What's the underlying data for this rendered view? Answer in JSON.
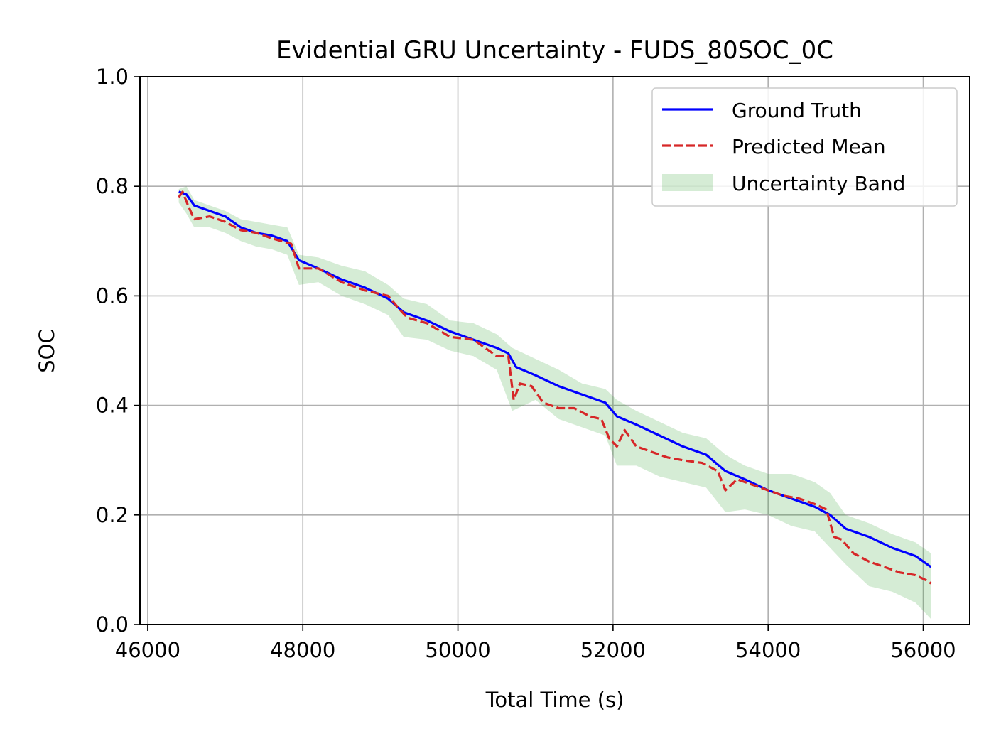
{
  "chart_data": {
    "type": "line",
    "title": "Evidential GRU Uncertainty - FUDS_80SOC_0C",
    "xlabel": "Total Time (s)",
    "ylabel": "SOC",
    "xlim": [
      45900,
      56600
    ],
    "ylim": [
      0.0,
      1.0
    ],
    "xticks": [
      46000,
      48000,
      50000,
      52000,
      54000,
      56000
    ],
    "xtick_labels": [
      "46000",
      "48000",
      "50000",
      "52000",
      "54000",
      "56000"
    ],
    "yticks": [
      0.0,
      0.2,
      0.4,
      0.6,
      0.8,
      1.0
    ],
    "ytick_labels": [
      "0.0",
      "0.2",
      "0.4",
      "0.6",
      "0.8",
      "1.0"
    ],
    "grid": true,
    "legend_position": "top-right",
    "colors": {
      "ground_truth": "#0000ff",
      "predicted_mean": "#d62728",
      "band": "#2ca02c"
    },
    "series": [
      {
        "name": "Ground Truth",
        "style": "solid",
        "x": [
          46400,
          46500,
          46600,
          46800,
          47000,
          47200,
          47400,
          47600,
          47800,
          47950,
          48200,
          48500,
          48800,
          49100,
          49300,
          49600,
          49900,
          50200,
          50500,
          50650,
          50750,
          51000,
          51300,
          51600,
          51900,
          52050,
          52300,
          52600,
          52900,
          53200,
          53450,
          53700,
          54000,
          54300,
          54600,
          54800,
          55000,
          55300,
          55600,
          55900,
          56100
        ],
        "y": [
          0.79,
          0.785,
          0.765,
          0.755,
          0.745,
          0.725,
          0.715,
          0.71,
          0.7,
          0.665,
          0.65,
          0.63,
          0.615,
          0.595,
          0.57,
          0.555,
          0.535,
          0.52,
          0.505,
          0.495,
          0.47,
          0.455,
          0.435,
          0.42,
          0.405,
          0.38,
          0.365,
          0.345,
          0.325,
          0.31,
          0.28,
          0.265,
          0.245,
          0.23,
          0.215,
          0.2,
          0.175,
          0.16,
          0.14,
          0.125,
          0.105
        ]
      },
      {
        "name": "Predicted Mean",
        "style": "dashed",
        "x": [
          46400,
          46450,
          46520,
          46600,
          46800,
          47000,
          47200,
          47400,
          47600,
          47850,
          47950,
          48200,
          48500,
          48800,
          49100,
          49250,
          49350,
          49600,
          49900,
          50200,
          50500,
          50650,
          50720,
          50800,
          50950,
          51100,
          51300,
          51500,
          51700,
          51850,
          51950,
          52050,
          52150,
          52300,
          52500,
          52700,
          52900,
          53150,
          53350,
          53450,
          53600,
          53800,
          54000,
          54200,
          54400,
          54600,
          54750,
          54850,
          54950,
          55100,
          55300,
          55500,
          55700,
          55900,
          56050,
          56100
        ],
        "y": [
          0.78,
          0.79,
          0.765,
          0.74,
          0.745,
          0.735,
          0.72,
          0.715,
          0.705,
          0.695,
          0.65,
          0.65,
          0.625,
          0.61,
          0.6,
          0.575,
          0.56,
          0.55,
          0.525,
          0.52,
          0.49,
          0.49,
          0.41,
          0.44,
          0.435,
          0.405,
          0.395,
          0.395,
          0.38,
          0.375,
          0.34,
          0.325,
          0.355,
          0.325,
          0.315,
          0.305,
          0.3,
          0.295,
          0.28,
          0.245,
          0.265,
          0.255,
          0.245,
          0.235,
          0.23,
          0.22,
          0.21,
          0.16,
          0.155,
          0.13,
          0.115,
          0.105,
          0.095,
          0.09,
          0.08,
          0.075
        ]
      }
    ],
    "uncertainty_band": {
      "name": "Uncertainty Band",
      "x": [
        46400,
        46500,
        46600,
        46800,
        47000,
        47200,
        47400,
        47600,
        47800,
        47950,
        48200,
        48500,
        48800,
        49100,
        49300,
        49600,
        49900,
        50200,
        50500,
        50700,
        51000,
        51300,
        51600,
        51900,
        52050,
        52300,
        52600,
        52900,
        53200,
        53450,
        53700,
        54000,
        54300,
        54600,
        54800,
        55000,
        55300,
        55600,
        55900,
        56100
      ],
      "lower": [
        0.77,
        0.75,
        0.725,
        0.725,
        0.715,
        0.7,
        0.69,
        0.685,
        0.675,
        0.62,
        0.625,
        0.6,
        0.585,
        0.565,
        0.525,
        0.52,
        0.5,
        0.49,
        0.465,
        0.39,
        0.41,
        0.375,
        0.36,
        0.345,
        0.29,
        0.29,
        0.27,
        0.26,
        0.25,
        0.205,
        0.21,
        0.2,
        0.18,
        0.17,
        0.14,
        0.11,
        0.07,
        0.06,
        0.04,
        0.01
      ],
      "upper": [
        0.795,
        0.8,
        0.775,
        0.765,
        0.755,
        0.74,
        0.735,
        0.73,
        0.725,
        0.675,
        0.67,
        0.655,
        0.645,
        0.62,
        0.595,
        0.585,
        0.555,
        0.55,
        0.53,
        0.505,
        0.485,
        0.465,
        0.44,
        0.43,
        0.41,
        0.39,
        0.37,
        0.35,
        0.34,
        0.31,
        0.29,
        0.275,
        0.275,
        0.26,
        0.24,
        0.2,
        0.185,
        0.165,
        0.15,
        0.13
      ]
    }
  }
}
